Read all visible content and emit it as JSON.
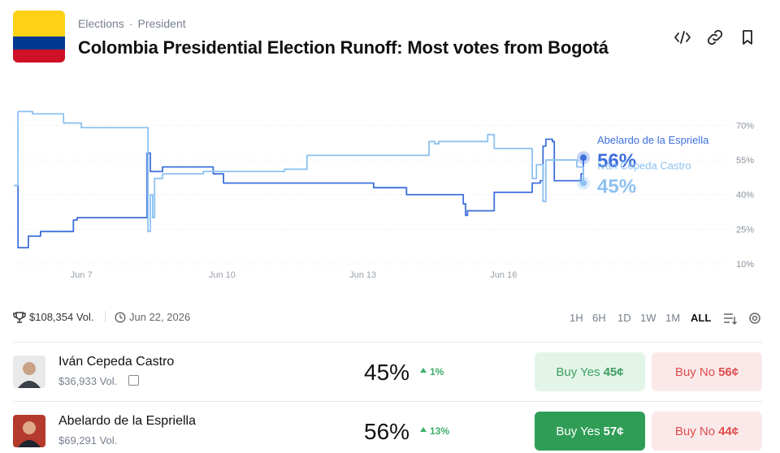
{
  "header": {
    "breadcrumb": [
      "Elections",
      "President"
    ],
    "title": "Colombia Presidential Election Runoff: Most votes from Bogotá"
  },
  "chart_data": {
    "type": "line",
    "step": "after",
    "grid": true,
    "xlim": [
      5.56,
      17.7
    ],
    "ylim": [
      10,
      80
    ],
    "xticks": [
      {
        "value": 7,
        "label": "Jun 7"
      },
      {
        "value": 10,
        "label": "Jun 10"
      },
      {
        "value": 13,
        "label": "Jun 13"
      },
      {
        "value": 16,
        "label": "Jun 16"
      }
    ],
    "yticks": [
      {
        "value": 10,
        "label": "10%"
      },
      {
        "value": 25,
        "label": "25%"
      },
      {
        "value": 40,
        "label": "40%"
      },
      {
        "value": 55,
        "label": "55%"
      },
      {
        "value": 70,
        "label": "70%"
      }
    ],
    "series": [
      {
        "name": "Abelardo de la Espriella",
        "color": "#3d6fdc",
        "x": [
          5.56,
          5.65,
          5.87,
          6.13,
          6.83,
          6.91,
          8.39,
          8.4,
          8.47,
          8.73,
          9.42,
          9.81,
          10.03,
          11.76,
          13.23,
          13.93,
          15.14,
          15.19,
          15.23,
          15.8,
          16.61,
          16.78,
          16.84,
          16.9,
          17.04,
          17.08,
          17.39,
          17.65,
          17.7
        ],
        "values": [
          44,
          17,
          22,
          24,
          29,
          30,
          30,
          58,
          50,
          52,
          52,
          49,
          45,
          45,
          43,
          40,
          36,
          31,
          33,
          41,
          45,
          46,
          61,
          64,
          63,
          46,
          46,
          49,
          56
        ],
        "value_labels": [
          null,
          null,
          null,
          null,
          null,
          null,
          null,
          null,
          null,
          null,
          null,
          null,
          null,
          null,
          null,
          null,
          null,
          null,
          null,
          null,
          null,
          null,
          null,
          null,
          null,
          null,
          null,
          null,
          "56%"
        ]
      },
      {
        "name": "Iván Cepeda Castro",
        "color": "#8cc1f0",
        "x": [
          5.56,
          5.65,
          5.96,
          6.57,
          6.62,
          7.0,
          8.42,
          8.47,
          8.52,
          8.56,
          8.73,
          9.6,
          11.33,
          11.81,
          14.41,
          14.53,
          14.62,
          15.66,
          15.8,
          16.61,
          16.7,
          16.84,
          16.9,
          17.56,
          17.7
        ],
        "values": [
          44,
          76,
          75,
          75,
          71,
          69,
          24,
          40,
          30,
          47,
          49,
          50,
          51,
          57,
          63,
          62,
          63,
          66,
          60,
          47,
          53,
          37,
          55,
          52,
          45
        ],
        "value_labels": [
          null,
          null,
          null,
          null,
          null,
          null,
          null,
          null,
          null,
          null,
          null,
          null,
          null,
          null,
          null,
          null,
          null,
          null,
          null,
          null,
          null,
          null,
          null,
          null,
          "45%"
        ]
      }
    ]
  },
  "stats": {
    "volume": "$108,354 Vol.",
    "end_date": "Jun 22, 2026",
    "ranges": [
      "1H",
      "6H",
      "1D",
      "1W",
      "1M",
      "ALL"
    ],
    "active_range": "ALL"
  },
  "outcomes": [
    {
      "name": "Iván Cepeda Castro",
      "volume": "$36,933 Vol.",
      "chance": "45%",
      "change": "1%",
      "buy_yes": "Buy Yes",
      "yes_price": "45¢",
      "buy_no": "Buy No",
      "no_price": "56¢"
    },
    {
      "name": "Abelardo de la Espriella",
      "volume": "$69,291 Vol.",
      "chance": "56%",
      "change": "13%",
      "buy_yes": "Buy Yes",
      "yes_price": "57¢",
      "buy_no": "Buy No",
      "no_price": "44¢"
    }
  ]
}
